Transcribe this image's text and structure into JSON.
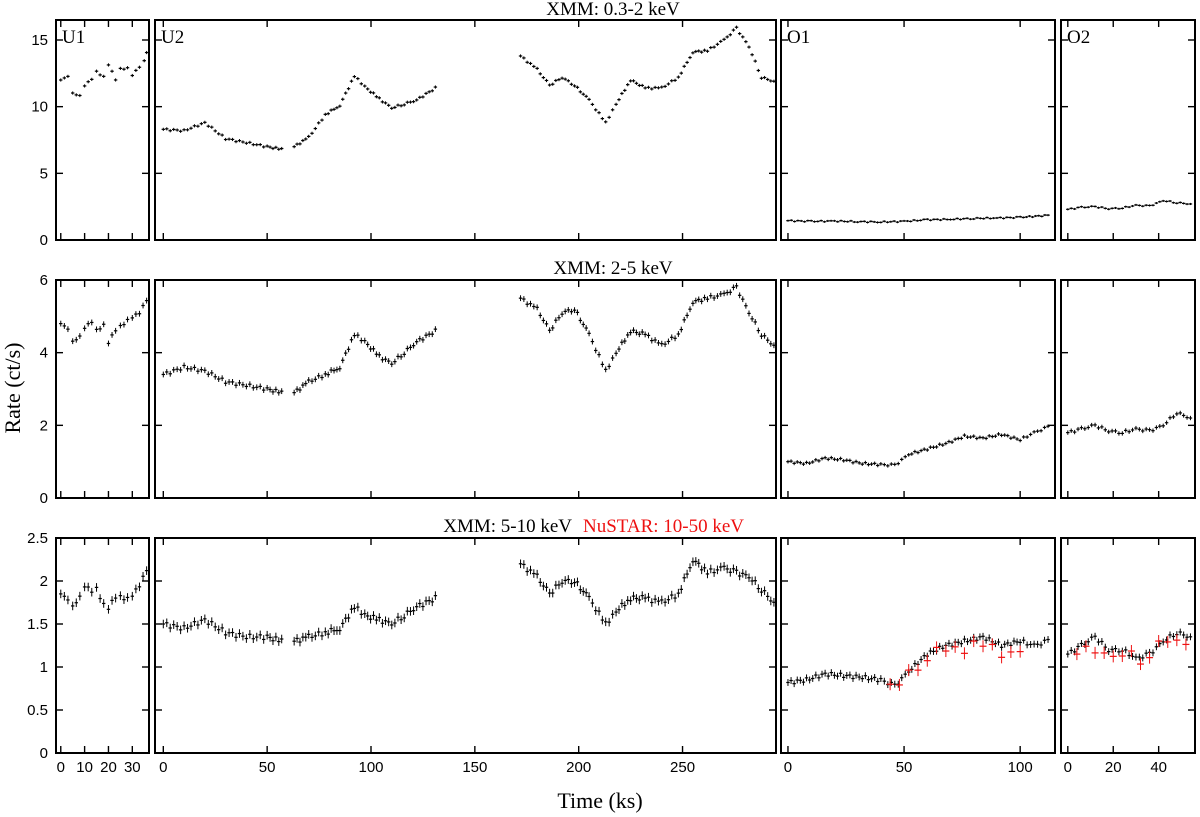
{
  "figure": {
    "ylabel": "Rate (ct/s)",
    "xlabel": "Time (ks)",
    "colors": {
      "xmm": "#000000",
      "nustar": "#ee1111"
    }
  },
  "chart_data": [
    {
      "type": "line",
      "title": "XMM: 0.3-2 keV",
      "ylim": [
        0,
        16.5
      ],
      "yticks": [
        0,
        5,
        10,
        15
      ],
      "segments": [
        {
          "name": "U1",
          "xlim": [
            -2,
            37
          ],
          "xticks": [
            0,
            10,
            20,
            30
          ],
          "series": [
            {
              "name": "XMM",
              "color": "#000000",
              "err": 0.12,
              "x": [
                0,
                3,
                5,
                8,
                10,
                13,
                15,
                18,
                20,
                23,
                25,
                28,
                30,
                33,
                35,
                36
              ],
              "y": [
                12.0,
                12.2,
                11.0,
                10.9,
                11.6,
                12.0,
                12.6,
                12.3,
                13.2,
                12.0,
                12.8,
                12.9,
                12.4,
                13.0,
                13.4,
                14.0
              ]
            }
          ]
        },
        {
          "name": "U2",
          "xlim": [
            -4,
            295
          ],
          "xticks": [
            0,
            50,
            100,
            150,
            200,
            250
          ],
          "series": [
            {
              "name": "XMM",
              "color": "#000000",
              "err": 0.12,
              "x": [
                0,
                10,
                20,
                30,
                40,
                50,
                57
              ],
              "y": [
                8.3,
                8.2,
                8.8,
                7.6,
                7.3,
                7.0,
                6.8
              ]
            },
            {
              "name": "XMM",
              "color": "#000000",
              "err": 0.12,
              "x": [
                63,
                70,
                78,
                85,
                92,
                97,
                104,
                110,
                116,
                122,
                131
              ],
              "y": [
                7.0,
                7.7,
                9.4,
                10.1,
                12.3,
                11.5,
                10.6,
                9.9,
                10.2,
                10.5,
                11.4
              ]
            },
            {
              "name": "XMM",
              "color": "#000000",
              "err": 0.12,
              "x": [
                172,
                180,
                186,
                192,
                198,
                205,
                213,
                218,
                225,
                232,
                240,
                248,
                255,
                262,
                270,
                276,
                282,
                288,
                294
              ],
              "y": [
                13.8,
                12.8,
                11.6,
                12.2,
                11.6,
                10.5,
                8.8,
                10.2,
                12.0,
                11.4,
                11.4,
                12.2,
                14.1,
                14.2,
                15.0,
                15.9,
                14.5,
                12.2,
                11.9
              ]
            }
          ]
        },
        {
          "name": "O1",
          "xlim": [
            -3,
            115
          ],
          "xticks": [
            0,
            50,
            100
          ],
          "series": [
            {
              "name": "XMM",
              "color": "#000000",
              "err": 0.08,
              "x": [
                0,
                10,
                20,
                30,
                40,
                50,
                60,
                70,
                80,
                90,
                100,
                112
              ],
              "y": [
                1.45,
                1.4,
                1.42,
                1.38,
                1.35,
                1.4,
                1.52,
                1.55,
                1.62,
                1.65,
                1.7,
                1.85
              ]
            }
          ]
        },
        {
          "name": "O2",
          "xlim": [
            -3,
            56
          ],
          "xticks": [
            0,
            20,
            40
          ],
          "series": [
            {
              "name": "XMM",
              "color": "#000000",
              "err": 0.08,
              "x": [
                0,
                6,
                12,
                18,
                24,
                30,
                36,
                42,
                48,
                54
              ],
              "y": [
                2.3,
                2.45,
                2.5,
                2.35,
                2.4,
                2.6,
                2.55,
                2.95,
                2.8,
                2.7
              ]
            }
          ]
        }
      ]
    },
    {
      "type": "line",
      "title": "XMM: 2-5 keV",
      "ylim": [
        0,
        6
      ],
      "yticks": [
        0,
        2,
        4,
        6
      ],
      "segments": [
        {
          "name": "U1",
          "xlim": [
            -2,
            37
          ],
          "xticks": [
            0,
            10,
            20,
            30
          ],
          "series": [
            {
              "name": "XMM",
              "color": "#000000",
              "err": 0.08,
              "x": [
                0,
                3,
                5,
                8,
                10,
                13,
                15,
                18,
                20,
                23,
                25,
                28,
                30,
                33,
                36
              ],
              "y": [
                4.8,
                4.6,
                4.3,
                4.5,
                4.7,
                4.8,
                4.6,
                4.8,
                4.3,
                4.6,
                4.7,
                4.9,
                5.0,
                5.1,
                5.4
              ]
            }
          ]
        },
        {
          "name": "U2",
          "xlim": [
            -4,
            295
          ],
          "xticks": [
            0,
            50,
            100,
            150,
            200,
            250
          ],
          "series": [
            {
              "name": "XMM",
              "color": "#000000",
              "err": 0.08,
              "x": [
                0,
                10,
                20,
                30,
                40,
                50,
                57
              ],
              "y": [
                3.4,
                3.6,
                3.5,
                3.2,
                3.1,
                3.0,
                2.9
              ]
            },
            {
              "name": "XMM",
              "color": "#000000",
              "err": 0.08,
              "x": [
                63,
                70,
                78,
                85,
                92,
                97,
                104,
                110,
                116,
                122,
                131
              ],
              "y": [
                2.9,
                3.2,
                3.4,
                3.6,
                4.5,
                4.3,
                3.9,
                3.7,
                4.0,
                4.3,
                4.6
              ]
            },
            {
              "name": "XMM",
              "color": "#000000",
              "err": 0.08,
              "x": [
                172,
                180,
                186,
                192,
                198,
                205,
                213,
                218,
                225,
                232,
                240,
                248,
                255,
                262,
                270,
                276,
                282,
                288,
                294
              ],
              "y": [
                5.5,
                5.2,
                4.6,
                5.1,
                5.2,
                4.5,
                3.5,
                4.0,
                4.6,
                4.5,
                4.2,
                4.5,
                5.4,
                5.5,
                5.6,
                5.8,
                5.1,
                4.5,
                4.2
              ]
            }
          ]
        },
        {
          "name": "O1",
          "xlim": [
            -3,
            115
          ],
          "xticks": [
            0,
            50,
            100
          ],
          "series": [
            {
              "name": "XMM",
              "color": "#000000",
              "err": 0.05,
              "x": [
                0,
                8,
                16,
                24,
                32,
                40,
                46,
                52,
                60,
                68,
                76,
                84,
                92,
                100,
                106,
                112
              ],
              "y": [
                1.0,
                0.95,
                1.1,
                1.05,
                0.95,
                0.92,
                0.9,
                1.2,
                1.35,
                1.5,
                1.7,
                1.65,
                1.75,
                1.6,
                1.8,
                1.95
              ]
            }
          ]
        },
        {
          "name": "O2",
          "xlim": [
            -3,
            56
          ],
          "xticks": [
            0,
            20,
            40
          ],
          "series": [
            {
              "name": "XMM",
              "color": "#000000",
              "err": 0.06,
              "x": [
                0,
                6,
                12,
                18,
                24,
                30,
                36,
                42,
                48,
                54
              ],
              "y": [
                1.8,
                1.9,
                2.0,
                1.85,
                1.8,
                1.9,
                1.85,
                2.0,
                2.35,
                2.2
              ]
            }
          ]
        }
      ]
    },
    {
      "type": "line",
      "title": "XMM: 5-10 keV",
      "title2": "NuSTAR: 10-50 keV",
      "ylim": [
        0,
        2.5
      ],
      "yticks": [
        0,
        0.5,
        1,
        1.5,
        2,
        2.5
      ],
      "segments": [
        {
          "name": "U1",
          "xlim": [
            -2,
            37
          ],
          "xticks": [
            0,
            10,
            20,
            30
          ],
          "series": [
            {
              "name": "XMM",
              "color": "#000000",
              "err": 0.05,
              "x": [
                0,
                3,
                5,
                8,
                10,
                13,
                15,
                18,
                20,
                23,
                25,
                28,
                30,
                33,
                36
              ],
              "y": [
                1.85,
                1.75,
                1.7,
                1.85,
                1.95,
                1.85,
                1.9,
                1.75,
                1.7,
                1.8,
                1.8,
                1.8,
                1.85,
                1.95,
                2.1
              ]
            }
          ]
        },
        {
          "name": "U2",
          "xlim": [
            -4,
            295
          ],
          "xticks": [
            0,
            50,
            100,
            150,
            200,
            250
          ],
          "series": [
            {
              "name": "XMM",
              "color": "#000000",
              "err": 0.05,
              "x": [
                0,
                10,
                20,
                30,
                40,
                50,
                57
              ],
              "y": [
                1.5,
                1.45,
                1.55,
                1.4,
                1.35,
                1.35,
                1.3
              ]
            },
            {
              "name": "XMM",
              "color": "#000000",
              "err": 0.05,
              "x": [
                63,
                70,
                78,
                85,
                92,
                97,
                104,
                110,
                116,
                122,
                131
              ],
              "y": [
                1.3,
                1.35,
                1.4,
                1.45,
                1.7,
                1.6,
                1.55,
                1.5,
                1.6,
                1.7,
                1.8
              ]
            },
            {
              "name": "XMM",
              "color": "#000000",
              "err": 0.05,
              "x": [
                172,
                180,
                186,
                192,
                198,
                205,
                213,
                218,
                225,
                232,
                240,
                248,
                255,
                262,
                270,
                276,
                282,
                288,
                294
              ],
              "y": [
                2.2,
                2.05,
                1.85,
                2.0,
                2.0,
                1.8,
                1.5,
                1.65,
                1.8,
                1.8,
                1.75,
                1.85,
                2.25,
                2.1,
                2.15,
                2.1,
                2.05,
                1.9,
                1.75
              ]
            }
          ]
        },
        {
          "name": "O1",
          "xlim": [
            -3,
            115
          ],
          "xticks": [
            0,
            50,
            100
          ],
          "series": [
            {
              "name": "XMM",
              "color": "#000000",
              "err": 0.04,
              "x": [
                0,
                8,
                16,
                24,
                32,
                40,
                46,
                52,
                60,
                68,
                76,
                84,
                92,
                100,
                106,
                112
              ],
              "y": [
                0.82,
                0.85,
                0.92,
                0.9,
                0.88,
                0.85,
                0.78,
                0.95,
                1.15,
                1.25,
                1.3,
                1.35,
                1.25,
                1.3,
                1.25,
                1.3
              ]
            },
            {
              "name": "NuSTAR",
              "color": "#ee1111",
              "err": 0.07,
              "x": [
                44,
                48,
                52,
                56,
                60,
                64,
                68,
                72,
                76,
                80,
                84,
                88,
                92,
                96,
                100
              ],
              "y": [
                0.8,
                0.75,
                0.95,
                1.0,
                1.1,
                1.2,
                1.15,
                1.25,
                1.2,
                1.3,
                1.2,
                1.25,
                1.15,
                1.2,
                1.15
              ]
            }
          ]
        },
        {
          "name": "O2",
          "xlim": [
            -3,
            56
          ],
          "xticks": [
            0,
            20,
            40
          ],
          "series": [
            {
              "name": "XMM",
              "color": "#000000",
              "err": 0.04,
              "x": [
                0,
                6,
                12,
                18,
                24,
                30,
                36,
                42,
                48,
                54
              ],
              "y": [
                1.15,
                1.25,
                1.35,
                1.2,
                1.2,
                1.1,
                1.15,
                1.3,
                1.4,
                1.35
              ]
            },
            {
              "name": "NuSTAR",
              "color": "#ee1111",
              "err": 0.07,
              "x": [
                4,
                8,
                12,
                16,
                20,
                24,
                28,
                32,
                36,
                40,
                44,
                48,
                52
              ],
              "y": [
                1.15,
                1.2,
                1.15,
                1.2,
                1.15,
                1.1,
                1.15,
                1.05,
                1.15,
                1.3,
                1.25,
                1.3,
                1.3
              ]
            }
          ]
        }
      ]
    }
  ]
}
